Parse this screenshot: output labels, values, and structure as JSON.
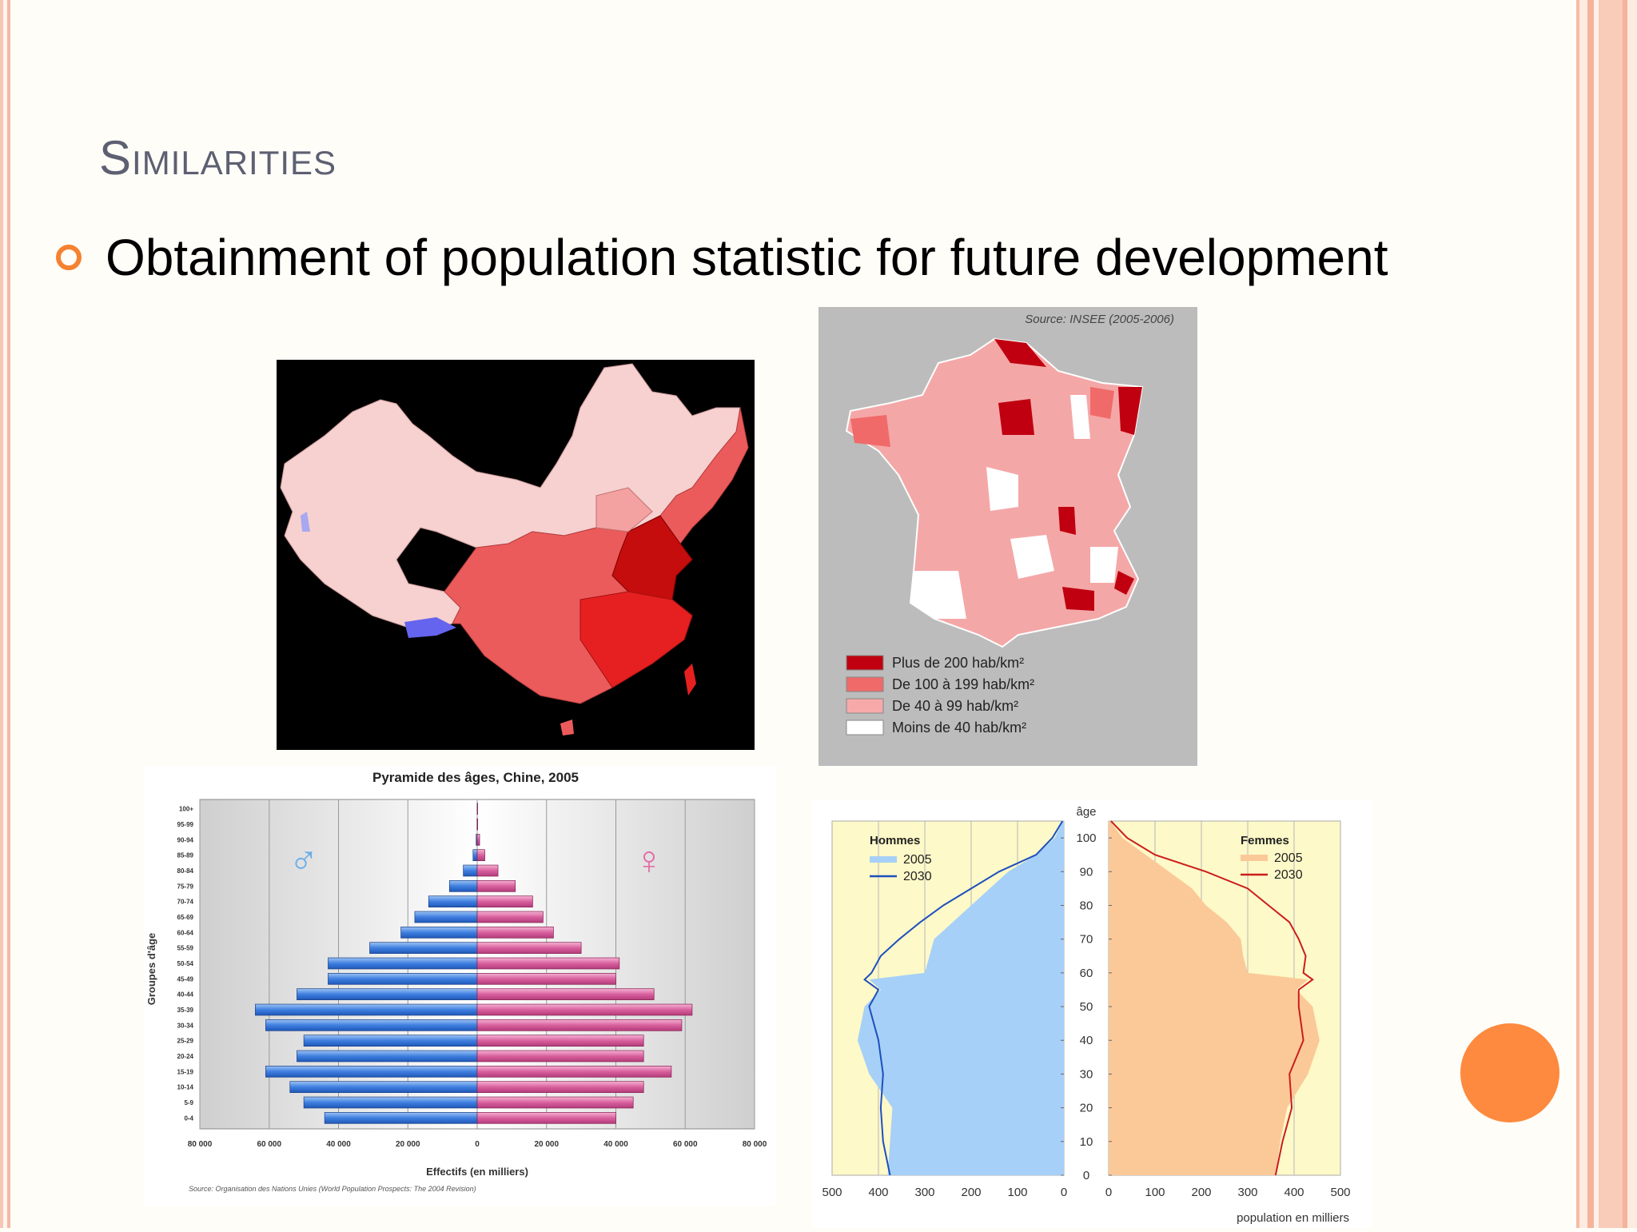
{
  "slide": {
    "title": "Similarities",
    "bullet": "Obtainment of population statistic for future development"
  },
  "france_map": {
    "source": "Source: INSEE (2005-2006)",
    "legend": [
      {
        "label": "Plus de 200 hab/km²",
        "color": "#c00010"
      },
      {
        "label": "De 100 à 199 hab/km²",
        "color": "#f06a6a"
      },
      {
        "label": "De 40 à 99 hab/km²",
        "color": "#f7a9a9"
      },
      {
        "label": "Moins de 40 hab/km²",
        "color": "#ffffff"
      }
    ]
  },
  "chart_data": [
    {
      "type": "bar",
      "title": "Pyramide des âges, Chine, 2005",
      "xlabel": "Effectifs (en milliers)",
      "ylabel": "Groupes d'âge",
      "source": "Source: Organisation des Nations Unies (World Population Prospects: The 2004 Revision)",
      "categories": [
        "0-4",
        "5-9",
        "10-14",
        "15-19",
        "20-24",
        "25-29",
        "30-34",
        "35-39",
        "40-44",
        "45-49",
        "50-54",
        "55-59",
        "60-64",
        "65-69",
        "70-74",
        "75-79",
        "80-84",
        "85-89",
        "90-94",
        "95-99",
        "100+"
      ],
      "x_ticks": [
        "80 000",
        "60 000",
        "40 000",
        "20 000",
        "0",
        "20 000",
        "40 000",
        "60 000",
        "80 000"
      ],
      "xlim": [
        -80000,
        80000
      ],
      "series": [
        {
          "name": "♂",
          "values": [
            44000,
            50000,
            54000,
            61000,
            52000,
            50000,
            61000,
            64000,
            52000,
            43000,
            43000,
            31000,
            22000,
            18000,
            14000,
            8000,
            4000,
            1200,
            300,
            50,
            5
          ]
        },
        {
          "name": "♀",
          "values": [
            40000,
            45000,
            48000,
            56000,
            48000,
            48000,
            59000,
            62000,
            51000,
            40000,
            41000,
            30000,
            22000,
            19000,
            16000,
            11000,
            6000,
            2200,
            700,
            150,
            20
          ]
        }
      ]
    },
    {
      "type": "area",
      "xlabel": "population en milliers",
      "ylabel": "âge",
      "x_ticks": [
        "500",
        "400",
        "300",
        "200",
        "100",
        "0",
        "0",
        "100",
        "200",
        "300",
        "400",
        "500"
      ],
      "y_ticks": [
        "0",
        "10",
        "20",
        "30",
        "40",
        "50",
        "60",
        "70",
        "80",
        "90",
        "100"
      ],
      "xlim": [
        0,
        500
      ],
      "ylim": [
        0,
        105
      ],
      "ages": [
        0,
        10,
        20,
        30,
        40,
        50,
        55,
        58,
        60,
        65,
        70,
        75,
        80,
        85,
        90,
        95,
        100,
        105
      ],
      "hommes": {
        "label": "Hommes",
        "series": [
          {
            "name": "2005",
            "values": [
              380,
              375,
              370,
              420,
              445,
              430,
              395,
              420,
              300,
              290,
              280,
              240,
              200,
              160,
              120,
              60,
              20,
              2
            ]
          },
          {
            "name": "2030",
            "values": [
              375,
              390,
              395,
              390,
              400,
              420,
              400,
              430,
              415,
              395,
              355,
              310,
              260,
              200,
              140,
              60,
              25,
              3
            ]
          }
        ]
      },
      "femmes": {
        "label": "Femmes",
        "series": [
          {
            "name": "2005",
            "values": [
              360,
              370,
              385,
              430,
              455,
              440,
              405,
              430,
              300,
              290,
              285,
              255,
              210,
              180,
              130,
              80,
              30,
              3
            ]
          },
          {
            "name": "2030",
            "values": [
              360,
              375,
              395,
              390,
              420,
              410,
              410,
              440,
              420,
              425,
              410,
              390,
              345,
              300,
              210,
              100,
              40,
              5
            ]
          }
        ]
      }
    }
  ]
}
